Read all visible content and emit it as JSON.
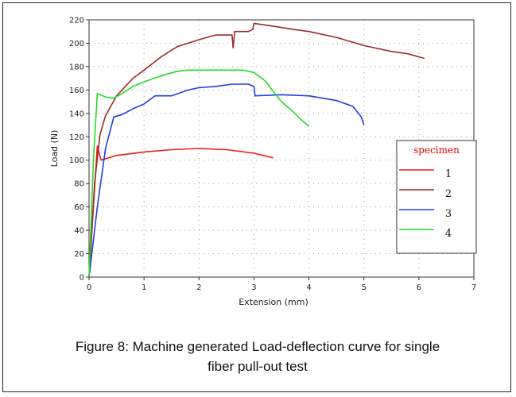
{
  "caption": {
    "line1": "Figure 8: Machine generated Load-deflection curve for single",
    "line2": "fiber pull-out test"
  },
  "chart_data": {
    "type": "line",
    "title": "",
    "xlabel": "Extension (mm)",
    "ylabel": "Load (N)",
    "xlim": [
      0,
      7
    ],
    "ylim": [
      0,
      220
    ],
    "x_ticks": [
      0,
      1,
      2,
      3,
      4,
      5,
      6,
      7
    ],
    "y_ticks": [
      0,
      20,
      40,
      60,
      80,
      100,
      120,
      140,
      160,
      180,
      200,
      220
    ],
    "grid": true,
    "legend_title": "specimen",
    "legend_position": "right",
    "series": [
      {
        "name": "1",
        "color": "#ee1c1c",
        "points": [
          [
            0,
            0
          ],
          [
            0.08,
            60
          ],
          [
            0.15,
            112
          ],
          [
            0.22,
            100
          ],
          [
            0.5,
            104
          ],
          [
            1,
            107
          ],
          [
            1.5,
            109
          ],
          [
            2,
            110
          ],
          [
            2.5,
            109
          ],
          [
            3,
            106
          ],
          [
            3.35,
            102
          ]
        ]
      },
      {
        "name": "2",
        "color": "#9b2b2b",
        "points": [
          [
            0,
            0
          ],
          [
            0.1,
            80
          ],
          [
            0.2,
            122
          ],
          [
            0.3,
            138
          ],
          [
            0.5,
            155
          ],
          [
            0.8,
            170
          ],
          [
            1,
            177
          ],
          [
            1.3,
            188
          ],
          [
            1.6,
            197
          ],
          [
            2,
            203
          ],
          [
            2.3,
            207
          ],
          [
            2.6,
            207
          ],
          [
            2.62,
            196
          ],
          [
            2.65,
            210
          ],
          [
            2.9,
            210
          ],
          [
            2.98,
            212
          ],
          [
            3.0,
            217
          ],
          [
            3.3,
            215
          ],
          [
            3.7,
            212
          ],
          [
            4,
            210
          ],
          [
            4.5,
            205
          ],
          [
            5,
            198
          ],
          [
            5.5,
            193
          ],
          [
            5.8,
            191
          ],
          [
            6.1,
            187
          ]
        ]
      },
      {
        "name": "3",
        "color": "#1f3fe0",
        "points": [
          [
            0,
            0
          ],
          [
            0.15,
            60
          ],
          [
            0.3,
            110
          ],
          [
            0.45,
            137
          ],
          [
            0.6,
            139
          ],
          [
            0.8,
            144
          ],
          [
            1,
            148
          ],
          [
            1.2,
            155
          ],
          [
            1.5,
            155
          ],
          [
            1.8,
            160
          ],
          [
            2,
            162
          ],
          [
            2.3,
            163
          ],
          [
            2.6,
            165
          ],
          [
            2.9,
            165
          ],
          [
            3.0,
            163
          ],
          [
            3.02,
            155
          ],
          [
            3.5,
            156
          ],
          [
            4,
            155
          ],
          [
            4.5,
            151
          ],
          [
            4.8,
            146
          ],
          [
            4.95,
            137
          ],
          [
            5.0,
            130
          ]
        ]
      },
      {
        "name": "4",
        "color": "#22dd22",
        "points": [
          [
            0,
            0
          ],
          [
            0.08,
            100
          ],
          [
            0.15,
            157
          ],
          [
            0.3,
            154
          ],
          [
            0.45,
            153
          ],
          [
            0.6,
            157
          ],
          [
            0.8,
            163
          ],
          [
            1,
            167
          ],
          [
            1.3,
            172
          ],
          [
            1.6,
            176
          ],
          [
            1.8,
            177
          ],
          [
            2,
            177
          ],
          [
            2.5,
            177
          ],
          [
            2.8,
            177
          ],
          [
            3,
            175
          ],
          [
            3.2,
            168
          ],
          [
            3.5,
            150
          ],
          [
            3.7,
            142
          ],
          [
            3.85,
            135
          ],
          [
            4.0,
            129
          ]
        ]
      }
    ]
  }
}
